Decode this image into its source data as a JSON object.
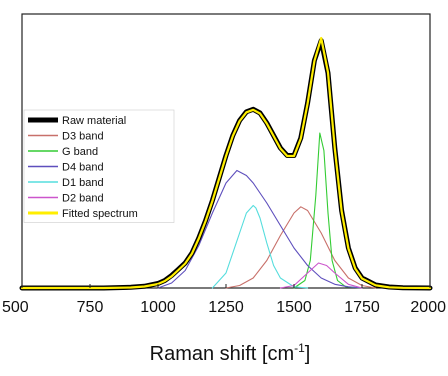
{
  "chart_data": {
    "type": "line",
    "title": "",
    "xlabel": "Raman shift [cm",
    "xlabel_superscript": "-1",
    "xlabel_suffix": "]",
    "ylabel": "",
    "xlim": [
      500,
      2000
    ],
    "ylim": [
      0,
      1.0
    ],
    "x_ticks": [
      "500",
      "750",
      "1000",
      "1250",
      "1500",
      "1750",
      "2000"
    ],
    "legend_location": "center-left",
    "series": [
      {
        "name": "Raw material",
        "color": "#000000",
        "x": [
          500,
          600,
          700,
          800,
          900,
          950,
          1000,
          1025,
          1050,
          1075,
          1100,
          1125,
          1150,
          1175,
          1200,
          1225,
          1250,
          1275,
          1300,
          1325,
          1350,
          1375,
          1400,
          1425,
          1450,
          1475,
          1500,
          1525,
          1550,
          1575,
          1600,
          1625,
          1650,
          1675,
          1700,
          1725,
          1750,
          1800,
          1850,
          1900,
          2000
        ],
        "y": [
          0,
          0,
          0,
          0,
          0.003,
          0.007,
          0.018,
          0.03,
          0.05,
          0.075,
          0.1,
          0.14,
          0.2,
          0.27,
          0.35,
          0.44,
          0.53,
          0.61,
          0.67,
          0.705,
          0.715,
          0.7,
          0.66,
          0.61,
          0.56,
          0.53,
          0.53,
          0.6,
          0.74,
          0.91,
          0.99,
          0.86,
          0.56,
          0.31,
          0.16,
          0.08,
          0.04,
          0.012,
          0.004,
          0.001,
          0
        ]
      },
      {
        "name": "D3 band",
        "color": "#c8706a",
        "x": [
          1250,
          1300,
          1350,
          1400,
          1450,
          1500,
          1525,
          1550,
          1600,
          1650,
          1700,
          1750,
          1800
        ],
        "y": [
          0,
          0.01,
          0.04,
          0.11,
          0.21,
          0.3,
          0.325,
          0.31,
          0.22,
          0.11,
          0.04,
          0.01,
          0
        ]
      },
      {
        "name": "G band",
        "color": "#33cc33",
        "x": [
          1500,
          1540,
          1560,
          1580,
          1595,
          1610,
          1625,
          1640,
          1660,
          1690,
          1750
        ],
        "y": [
          0,
          0.03,
          0.11,
          0.37,
          0.62,
          0.55,
          0.3,
          0.11,
          0.03,
          0.005,
          0
        ]
      },
      {
        "name": "D4 band",
        "color": "#5e4fbd",
        "x": [
          1000,
          1050,
          1100,
          1150,
          1200,
          1250,
          1290,
          1325,
          1350,
          1400,
          1450,
          1500,
          1550,
          1600,
          1650,
          1700,
          1750
        ],
        "y": [
          0,
          0.02,
          0.07,
          0.17,
          0.3,
          0.42,
          0.47,
          0.45,
          0.42,
          0.34,
          0.25,
          0.16,
          0.09,
          0.04,
          0.015,
          0.005,
          0
        ]
      },
      {
        "name": "D1 band",
        "color": "#55dddd",
        "x": [
          1200,
          1250,
          1300,
          1325,
          1350,
          1360,
          1375,
          1400,
          1425,
          1450,
          1500,
          1550
        ],
        "y": [
          0,
          0.06,
          0.22,
          0.3,
          0.33,
          0.32,
          0.28,
          0.18,
          0.09,
          0.04,
          0.005,
          0
        ]
      },
      {
        "name": "D2 band",
        "color": "#cc55cc",
        "x": [
          1450,
          1500,
          1550,
          1590,
          1620,
          1650,
          1700,
          1750
        ],
        "y": [
          0,
          0.01,
          0.06,
          0.1,
          0.09,
          0.06,
          0.015,
          0
        ]
      },
      {
        "name": "Fitted spectrum",
        "color": "#ffee00",
        "x": [
          500,
          600,
          700,
          800,
          900,
          950,
          1000,
          1025,
          1050,
          1075,
          1100,
          1125,
          1150,
          1175,
          1200,
          1225,
          1250,
          1275,
          1300,
          1325,
          1350,
          1375,
          1400,
          1425,
          1450,
          1475,
          1500,
          1525,
          1550,
          1575,
          1600,
          1625,
          1650,
          1675,
          1700,
          1725,
          1750,
          1800,
          1850,
          1900,
          2000
        ],
        "y": [
          0,
          0,
          0,
          0,
          0.002,
          0.006,
          0.016,
          0.028,
          0.047,
          0.072,
          0.098,
          0.138,
          0.198,
          0.268,
          0.348,
          0.438,
          0.528,
          0.608,
          0.668,
          0.703,
          0.713,
          0.698,
          0.658,
          0.608,
          0.558,
          0.528,
          0.528,
          0.598,
          0.738,
          0.908,
          1.0,
          0.862,
          0.558,
          0.308,
          0.158,
          0.078,
          0.038,
          0.011,
          0.003,
          0.001,
          0
        ]
      }
    ]
  }
}
